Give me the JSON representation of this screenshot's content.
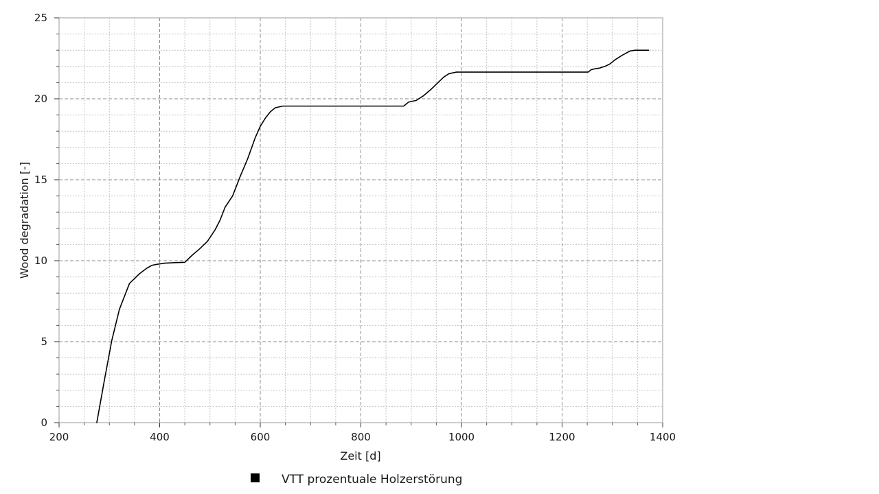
{
  "chart_data": {
    "type": "line",
    "xlabel": "Zeit [d]",
    "ylabel": "Wood degradation [-]",
    "xlim": [
      200,
      1400
    ],
    "ylim": [
      0,
      25
    ],
    "x_major_ticks": [
      200,
      400,
      600,
      800,
      1000,
      1200,
      1400
    ],
    "x_tick_labels": [
      "200",
      "400",
      "600",
      "800",
      "1000",
      "1200",
      "1400"
    ],
    "y_major_ticks": [
      0,
      5,
      10,
      15,
      20,
      25
    ],
    "y_tick_labels": [
      "0",
      "5",
      "10",
      "15",
      "20",
      "25"
    ],
    "x_minor_step": 50,
    "y_minor_step": 1,
    "grid": true,
    "legend_position": "bottom-center",
    "series": [
      {
        "name": "VTT prozentuale Holzerstörung",
        "color": "#000000",
        "x": [
          275,
          290,
          305,
          320,
          340,
          360,
          375,
          385,
          395,
          410,
          430,
          450,
          465,
          480,
          495,
          510,
          520,
          530,
          545,
          560,
          575,
          590,
          600,
          610,
          620,
          630,
          645,
          700,
          800,
          885,
          895,
          910,
          925,
          940,
          955,
          965,
          975,
          990,
          1050,
          1100,
          1200,
          1252,
          1258,
          1265,
          1275,
          1285,
          1295,
          1305,
          1320,
          1335,
          1345,
          1372
        ],
        "y": [
          0,
          2.6,
          5.1,
          7.0,
          8.6,
          9.2,
          9.55,
          9.72,
          9.78,
          9.85,
          9.88,
          9.9,
          10.35,
          10.75,
          11.2,
          11.9,
          12.5,
          13.3,
          14.0,
          15.2,
          16.3,
          17.6,
          18.3,
          18.8,
          19.2,
          19.45,
          19.55,
          19.55,
          19.55,
          19.55,
          19.8,
          19.9,
          20.2,
          20.6,
          21.05,
          21.35,
          21.55,
          21.65,
          21.65,
          21.65,
          21.65,
          21.65,
          21.8,
          21.85,
          21.9,
          22.0,
          22.15,
          22.4,
          22.7,
          22.95,
          23.0,
          23.0
        ]
      }
    ]
  }
}
